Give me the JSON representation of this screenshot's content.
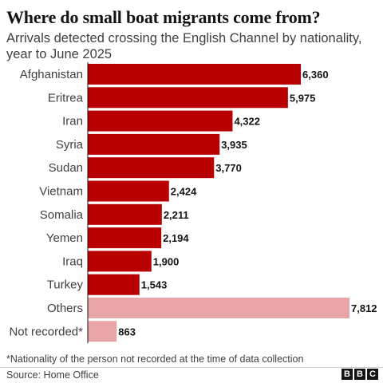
{
  "title": "Where do small boat migrants come from?",
  "subtitle": "Arrivals detected crossing the English Channel by nationality, year to June 2025",
  "footnote": "*Nationality of the person not recorded at the time of data collection",
  "source": "Source: Home Office",
  "logo_letters": [
    "B",
    "B",
    "C"
  ],
  "colors": {
    "primary": "#b80000",
    "others": "#e8a5a5",
    "text": "#141414",
    "muted": "#3f3f42"
  },
  "chart_data": {
    "type": "bar",
    "orientation": "horizontal",
    "title": "Where do small boat migrants come from?",
    "subtitle": "Arrivals detected crossing the English Channel by nationality, year to June 2025",
    "categories": [
      "Afghanistan",
      "Eritrea",
      "Iran",
      "Syria",
      "Sudan",
      "Vietnam",
      "Somalia",
      "Yemen",
      "Iraq",
      "Turkey",
      "Others",
      "Not recorded*"
    ],
    "values": [
      6360,
      5975,
      4322,
      3935,
      3770,
      2424,
      2211,
      2194,
      1900,
      1543,
      7812,
      863
    ],
    "value_labels": [
      "6,360",
      "5,975",
      "4,322",
      "3,935",
      "3,770",
      "2,424",
      "2,211",
      "2,194",
      "1,900",
      "1,543",
      "7,812",
      "863"
    ],
    "bar_colors": [
      "#b80000",
      "#b80000",
      "#b80000",
      "#b80000",
      "#b80000",
      "#b80000",
      "#b80000",
      "#b80000",
      "#b80000",
      "#b80000",
      "#e8a5a5",
      "#e8a5a5"
    ],
    "xlim": [
      0,
      7812
    ],
    "grid": false,
    "legend": "none",
    "data_labels": "outside-end"
  }
}
